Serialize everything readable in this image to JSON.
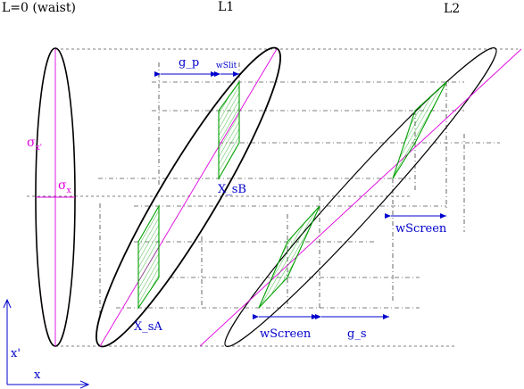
{
  "labels": {
    "waist": "L=0 (waist)",
    "l1": "L1",
    "l2": "L2",
    "sigma_xp_main": "σ",
    "sigma_xp_sub": "x'",
    "sigma_x_main": "σ",
    "sigma_x_sub": "x",
    "g_p": "g_p",
    "wslit": "wSlit",
    "x_sb": "X_sB",
    "x_sa": "X_sA",
    "wscreen_right": "wScreen",
    "wscreen_bottom": "wScreen",
    "g_s": "g_s",
    "axis_xp": "x'",
    "axis_x": "x"
  },
  "colors": {
    "ellipse": "#000000",
    "axis_line": "#e000e0",
    "hatch": "#00a000",
    "arrow": "#0000cc"
  }
}
